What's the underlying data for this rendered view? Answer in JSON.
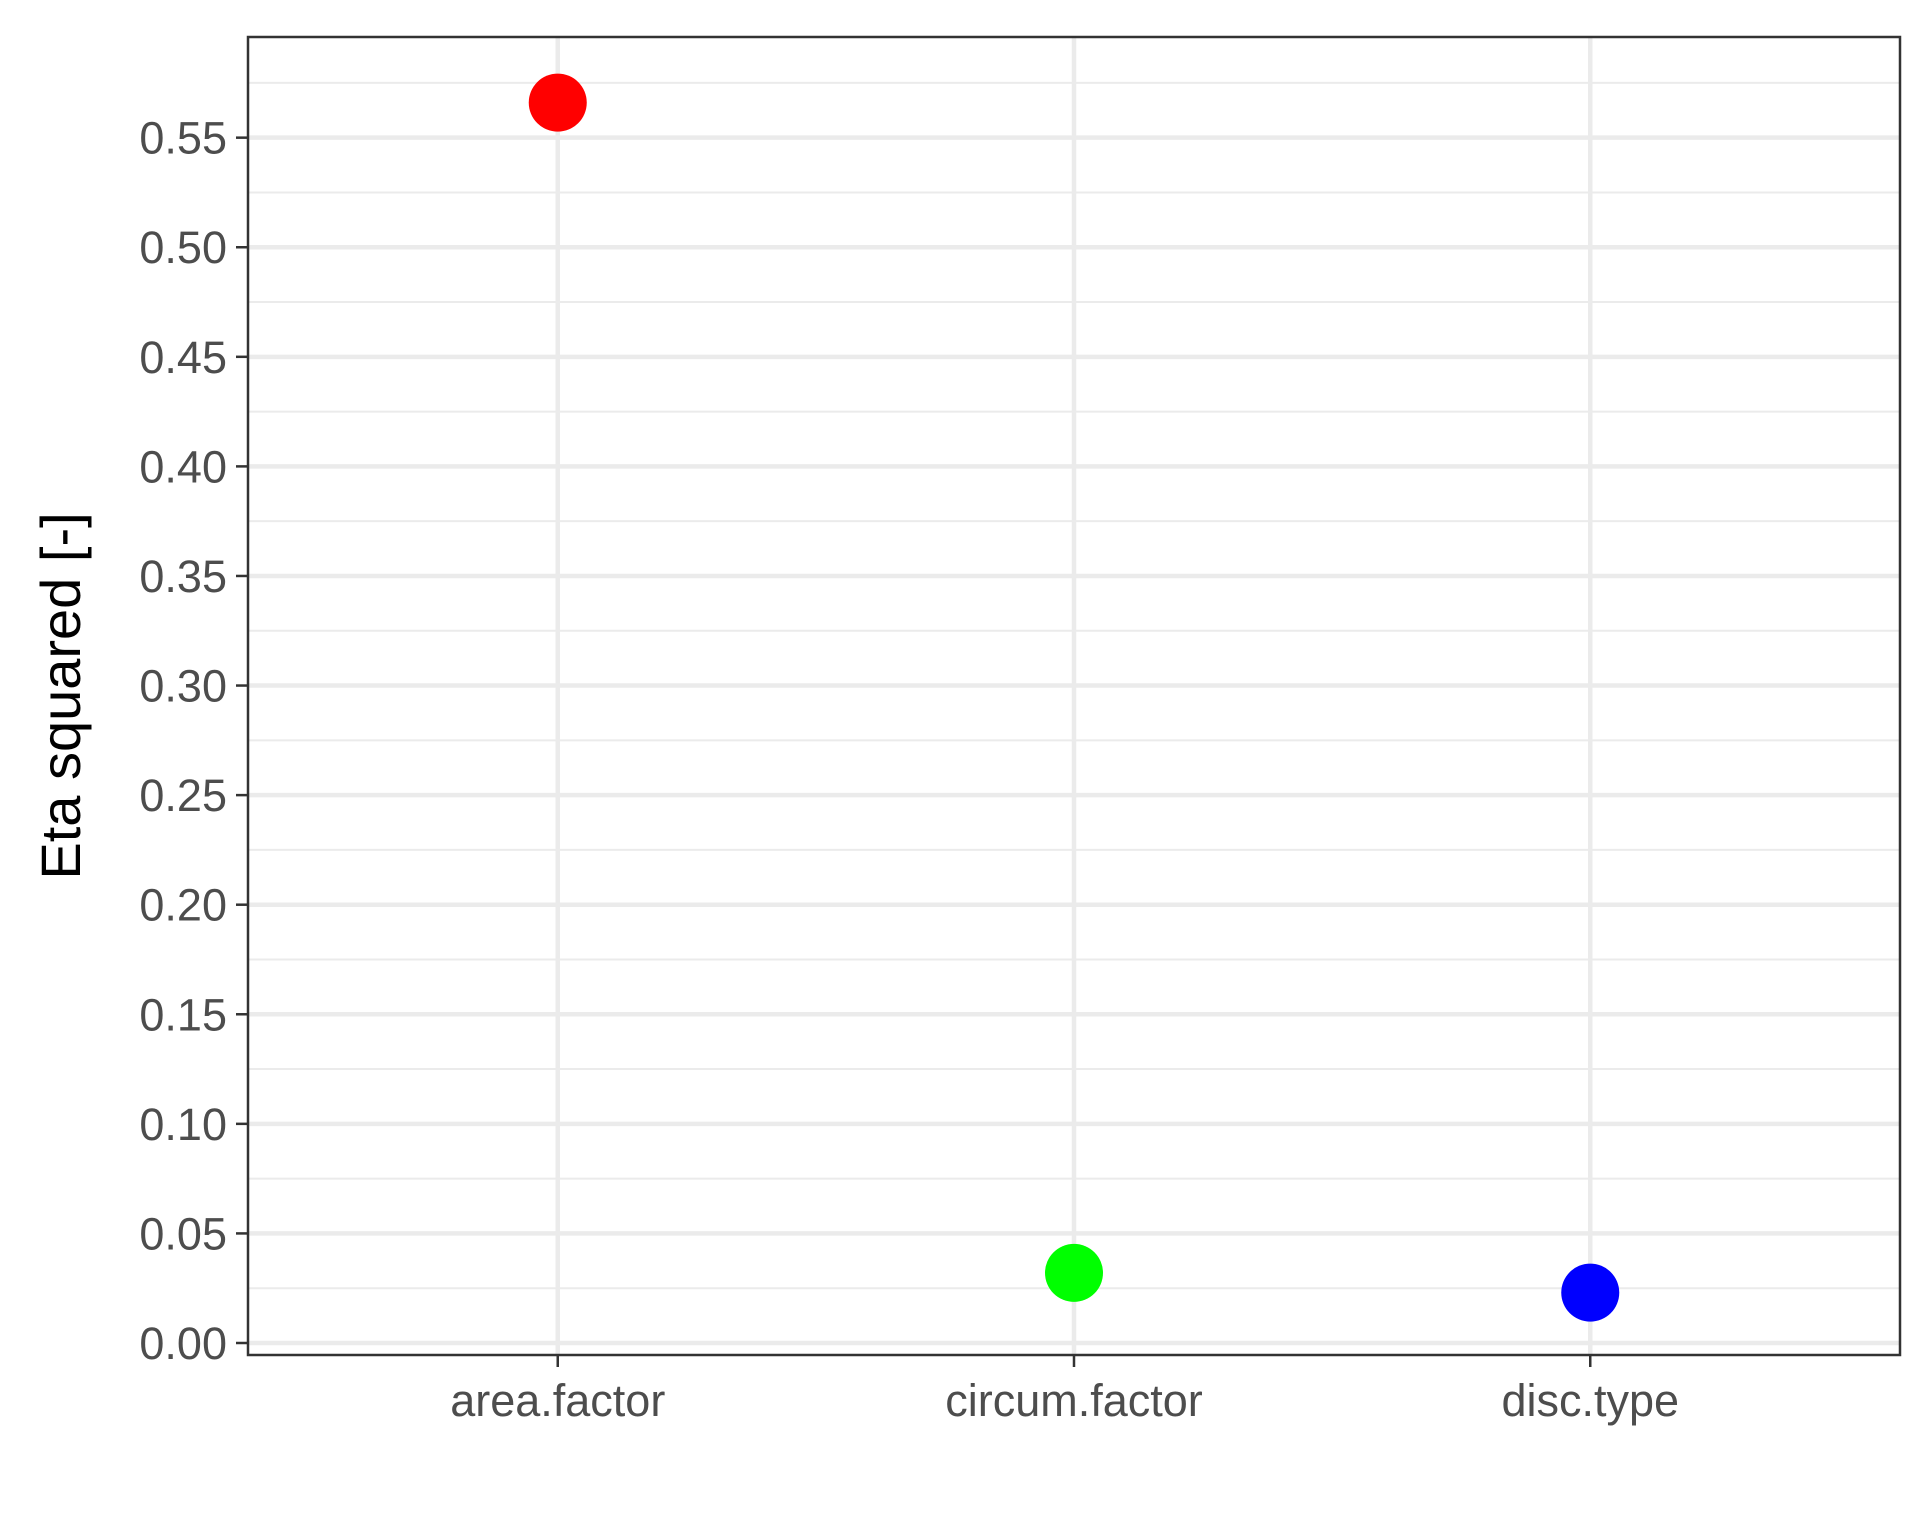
{
  "chart_data": {
    "type": "scatter",
    "categories": [
      "area.factor",
      "circum.factor",
      "disc.type"
    ],
    "values": [
      0.566,
      0.032,
      0.023
    ],
    "colors": [
      "#ff0000",
      "#00ff00",
      "#0000ff"
    ],
    "xlabel": "",
    "ylabel": "Eta squared [-]",
    "ylim": [
      0,
      0.59
    ],
    "yticks": [
      "0.00",
      "0.05",
      "0.10",
      "0.15",
      "0.20",
      "0.25",
      "0.30",
      "0.35",
      "0.40",
      "0.45",
      "0.50",
      "0.55"
    ],
    "grid": true,
    "legend": "none"
  }
}
